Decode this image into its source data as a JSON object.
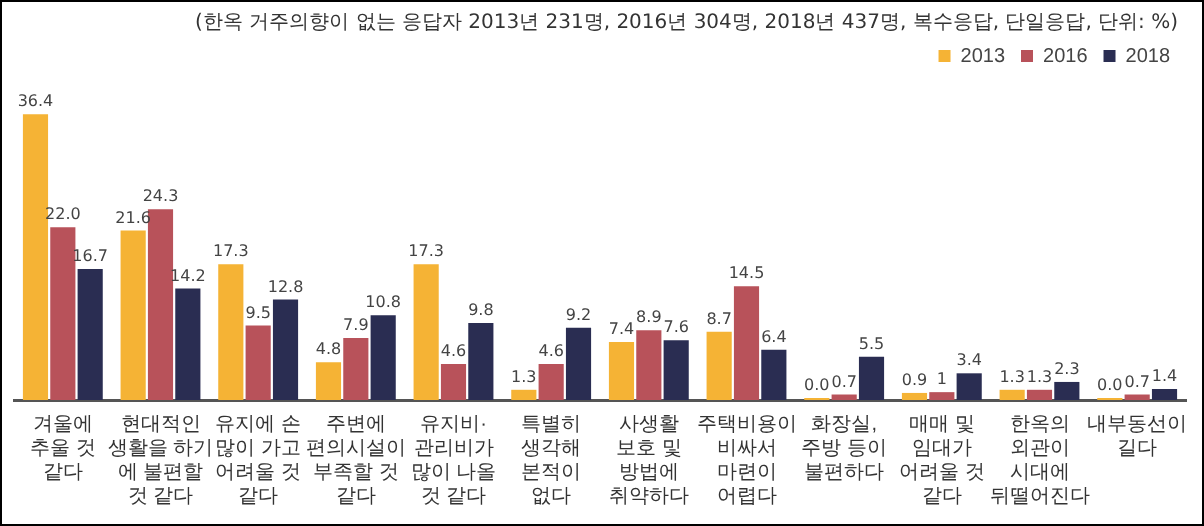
{
  "chart_data": {
    "type": "bar",
    "annotations": [
      "(한옥 거주의향이 없는 응답자 2013년 231명, 2016년 304명, 2018년 437명, 복수응답, 단일응답, 단위: %)"
    ],
    "categories": [
      "겨울에\n추울 것\n같다",
      "현대적인\n생활을 하기\n에 불편할\n것 같다",
      "유지에 손\n많이 가고\n어려울 것\n같다",
      "주변에\n편의시설이\n부족할 것\n같다",
      "유지비·\n관리비가\n많이 나올\n것 같다",
      "특별히\n생각해\n본적이\n없다",
      "사생활\n보호 및\n방법에\n취약하다",
      "주택비용이\n비싸서\n마련이\n어렵다",
      "화장실,\n주방 등이\n불편하다",
      "매매 및\n임대가\n어려울 것\n같다",
      "한옥의\n외관이\n시대에\n뒤떨어진다",
      "내부동선이\n길다"
    ],
    "series": [
      {
        "name": "2013",
        "color": "#f5b335",
        "values": [
          36.4,
          21.6,
          17.3,
          4.8,
          17.3,
          1.3,
          7.4,
          8.7,
          0.0,
          0.9,
          1.3,
          0.0
        ],
        "value_labels": [
          "36.4",
          "21.6",
          "17.3",
          "4.8",
          "17.3",
          "1.3",
          "7.4",
          "8.7",
          "0.0",
          "0.9",
          "1.3",
          "0.0"
        ]
      },
      {
        "name": "2016",
        "color": "#b8525a",
        "values": [
          22.0,
          24.3,
          9.5,
          7.9,
          4.6,
          4.6,
          8.9,
          14.5,
          0.7,
          1,
          1.3,
          0.7
        ],
        "value_labels": [
          "22.0",
          "24.3",
          "9.5",
          "7.9",
          "4.6",
          "4.6",
          "8.9",
          "14.5",
          "0.7",
          "1",
          "1.3",
          "0.7"
        ]
      },
      {
        "name": "2018",
        "color": "#2a2d52",
        "values": [
          16.7,
          14.2,
          12.8,
          10.8,
          9.8,
          9.2,
          7.6,
          6.4,
          5.5,
          3.4,
          2.3,
          1.4
        ],
        "value_labels": [
          "16.7",
          "14.2",
          "12.8",
          "10.8",
          "9.8",
          "9.2",
          "7.6",
          "6.4",
          "5.5",
          "3.4",
          "2.3",
          "1.4"
        ]
      }
    ],
    "legend": "top right",
    "grid": false
  }
}
